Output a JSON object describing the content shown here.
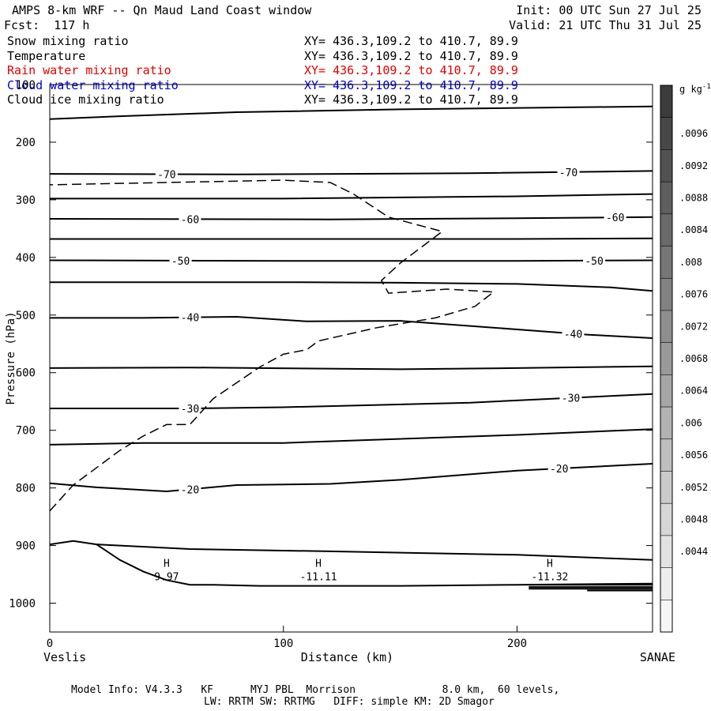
{
  "header": {
    "title": "AMPS 8-km WRF -- Qn Maud Land Coast window",
    "init": "Init: 00 UTC Sun 27 Jul 25",
    "fcst": "Fcst:  117 h",
    "valid": "Valid: 21 UTC Thu 31 Jul 25"
  },
  "fields": [
    {
      "label": "Snow mixing ratio",
      "xy": "XY= 436.3,109.2 to 410.7, 89.9",
      "color": "#000000"
    },
    {
      "label": "Temperature",
      "xy": "XY= 436.3,109.2 to 410.7, 89.9",
      "color": "#000000"
    },
    {
      "label": "Rain water mixing ratio",
      "xy": "XY= 436.3,109.2 to 410.7, 89.9",
      "color": "#e00000"
    },
    {
      "label": "Cloud water mixing ratio",
      "xy": "XY= 436.3,109.2 to 410.7, 89.9",
      "color": "#0000cc"
    },
    {
      "label": "Cloud ice mixing ratio",
      "xy": "XY= 436.3,109.2 to 410.7, 89.9",
      "color": "#000000"
    }
  ],
  "footer": {
    "line1": "Model Info: V4.3.3   KF      MYJ PBL  Morrison              8.0 km,  60 levels,",
    "line2": "LW: RRTM SW: RRTMG   DIFF: simple KM: 2D Smagor"
  },
  "chart_data": {
    "type": "line",
    "ylabel": "Pressure (hPa)",
    "xlabel": "Distance (km)",
    "xlim": [
      0,
      258
    ],
    "ylim": [
      100,
      1050
    ],
    "y_reversed": true,
    "xticks": [
      0,
      100,
      200
    ],
    "yticks": [
      100,
      200,
      300,
      400,
      500,
      600,
      700,
      800,
      900,
      1000
    ],
    "left_endpoint": "Veslis",
    "right_endpoint": "SANAE",
    "isotherms": [
      {
        "points": [
          [
            0,
            160
          ],
          [
            30,
            155
          ],
          [
            80,
            148
          ],
          [
            150,
            143
          ],
          [
            258,
            138
          ]
        ]
      },
      {
        "points": [
          [
            0,
            255
          ],
          [
            80,
            256
          ],
          [
            180,
            254
          ],
          [
            258,
            250
          ]
        ],
        "labels": [
          {
            "x": 50,
            "text": "-70"
          },
          {
            "x": 222,
            "text": "-70"
          }
        ]
      },
      {
        "points": [
          [
            0,
            298
          ],
          [
            100,
            298
          ],
          [
            200,
            294
          ],
          [
            258,
            290
          ]
        ]
      },
      {
        "points": [
          [
            0,
            333
          ],
          [
            120,
            334
          ],
          [
            200,
            332
          ],
          [
            258,
            330
          ]
        ],
        "labels": [
          {
            "x": 60,
            "text": "-60"
          },
          {
            "x": 242,
            "text": "-60"
          }
        ]
      },
      {
        "points": [
          [
            0,
            368
          ],
          [
            100,
            368
          ],
          [
            200,
            368
          ],
          [
            258,
            367
          ]
        ]
      },
      {
        "points": [
          [
            0,
            405
          ],
          [
            100,
            406
          ],
          [
            200,
            406
          ],
          [
            258,
            405
          ]
        ],
        "labels": [
          {
            "x": 56,
            "text": "-50"
          },
          {
            "x": 233,
            "text": "-50"
          }
        ]
      },
      {
        "points": [
          [
            0,
            443
          ],
          [
            100,
            443
          ],
          [
            150,
            444
          ],
          [
            200,
            446
          ],
          [
            240,
            452
          ],
          [
            258,
            458
          ]
        ]
      },
      {
        "points": [
          [
            0,
            505
          ],
          [
            40,
            505
          ],
          [
            80,
            503
          ],
          [
            110,
            511
          ],
          [
            150,
            510
          ],
          [
            200,
            525
          ],
          [
            230,
            534
          ],
          [
            258,
            540
          ]
        ],
        "labels": [
          {
            "x": 60,
            "text": "-40"
          },
          {
            "x": 224,
            "text": "-40"
          }
        ]
      },
      {
        "points": [
          [
            0,
            592
          ],
          [
            60,
            591
          ],
          [
            150,
            594
          ],
          [
            200,
            592
          ],
          [
            258,
            589
          ]
        ]
      },
      {
        "points": [
          [
            0,
            662
          ],
          [
            60,
            662
          ],
          [
            100,
            660
          ],
          [
            180,
            652
          ],
          [
            258,
            637
          ]
        ],
        "labels": [
          {
            "x": 60,
            "text": "-30"
          },
          {
            "x": 223,
            "text": "-30"
          }
        ]
      },
      {
        "points": [
          [
            0,
            725
          ],
          [
            40,
            722
          ],
          [
            100,
            722
          ],
          [
            200,
            708
          ],
          [
            258,
            698
          ]
        ]
      },
      {
        "points": [
          [
            0,
            792
          ],
          [
            20,
            799
          ],
          [
            50,
            806
          ],
          [
            80,
            795
          ],
          [
            120,
            793
          ],
          [
            150,
            786
          ],
          [
            200,
            770
          ],
          [
            258,
            758
          ]
        ],
        "labels": [
          {
            "x": 60,
            "text": "-20"
          },
          {
            "x": 218,
            "text": "-20"
          }
        ]
      },
      {
        "points": [
          [
            0,
            898
          ],
          [
            10,
            892
          ],
          [
            20,
            898
          ],
          [
            30,
            925
          ],
          [
            40,
            945
          ],
          [
            50,
            960
          ],
          [
            60,
            968
          ],
          [
            70,
            968
          ],
          [
            90,
            970
          ],
          [
            150,
            970
          ],
          [
            200,
            968
          ],
          [
            258,
            966
          ]
        ]
      },
      {
        "points": [
          [
            20,
            898
          ],
          [
            60,
            906
          ],
          [
            120,
            910
          ],
          [
            200,
            916
          ],
          [
            258,
            925
          ]
        ]
      }
    ],
    "snow_dashed": [
      [
        0,
        840
      ],
      [
        10,
        795
      ],
      [
        30,
        735
      ],
      [
        40,
        710
      ],
      [
        50,
        690
      ],
      [
        60,
        690
      ],
      [
        70,
        645
      ],
      [
        90,
        590
      ],
      [
        100,
        568
      ],
      [
        110,
        560
      ],
      [
        115,
        545
      ],
      [
        140,
        522
      ],
      [
        165,
        505
      ],
      [
        182,
        485
      ],
      [
        190,
        460
      ],
      [
        170,
        455
      ],
      [
        145,
        462
      ],
      [
        142,
        440
      ],
      [
        150,
        410
      ],
      [
        168,
        355
      ],
      [
        145,
        330
      ],
      [
        130,
        290
      ],
      [
        120,
        270
      ],
      [
        100,
        266
      ],
      [
        0,
        274
      ]
    ],
    "highs": [
      {
        "x": 50,
        "text": "H",
        "value": "9.97"
      },
      {
        "x": 115,
        "text": "H",
        "value": "-11.11"
      },
      {
        "x": 214,
        "text": "H",
        "value": "-11.32"
      }
    ],
    "colorbar": {
      "unit": "g kg-1",
      "labels": [
        ".0096",
        ".0092",
        ".0088",
        ".0084",
        ".008",
        ".0076",
        ".0072",
        ".0068",
        ".0064",
        ".006",
        ".0056",
        ".0052",
        ".0048",
        ".0044"
      ],
      "colors": [
        "#3c3c3c",
        "#474747",
        "#525252",
        "#5e5e5e",
        "#6a6a6a",
        "#767676",
        "#828282",
        "#8e8e8e",
        "#9a9a9a",
        "#a6a6a6",
        "#b2b2b2",
        "#bebebe",
        "#cacaca",
        "#d6d6d6",
        "#e2e2e2",
        "#eeeeee",
        "#f6f6f6"
      ]
    }
  }
}
